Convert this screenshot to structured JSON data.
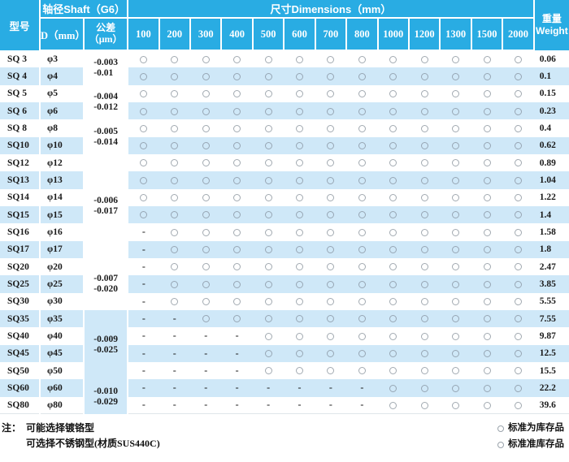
{
  "colors": {
    "header_bg": "#29ace3",
    "stripe_bg": "#cfe8f8",
    "header_text": "#ffffff"
  },
  "header": {
    "model_label": "型号",
    "shaft_label": "轴径Shaft（G6）",
    "d_label": "D（mm）",
    "tolerance_label_line1": "公差",
    "tolerance_label_line2": "（μm）",
    "dimensions_label": "尺寸Dimensions（mm）",
    "dim_columns": [
      "100",
      "200",
      "300",
      "400",
      "500",
      "600",
      "700",
      "800",
      "1000",
      "1200",
      "1300",
      "1500",
      "2000"
    ],
    "weight_label_cn": "重量",
    "weight_label_en": "Weight"
  },
  "tolerance_groups": [
    {
      "rows": 2,
      "lines": [
        "-0.003",
        "-0.01"
      ]
    },
    {
      "rows": 2,
      "lines": [
        "-0.004",
        "-0.012"
      ]
    },
    {
      "rows": 2,
      "lines": [
        "-0.005",
        "-0.014"
      ]
    },
    {
      "rows": 6,
      "lines": [
        "-0.006",
        "-0.017"
      ]
    },
    {
      "rows": 3,
      "lines": [
        "-0.007",
        "-0.020"
      ]
    },
    {
      "rows": 4,
      "lines": [
        "-0.009",
        "-0.025"
      ]
    },
    {
      "rows": 2,
      "lines": [
        "-0.010",
        "-0.029"
      ]
    }
  ],
  "rows": [
    {
      "model": "SQ 3",
      "d": "φ3",
      "cells": [
        "o",
        "o",
        "o",
        "o",
        "o",
        "o",
        "o",
        "o",
        "o",
        "o",
        "o",
        "o",
        "o"
      ],
      "weight": "0.06"
    },
    {
      "model": "SQ 4",
      "d": "φ4",
      "cells": [
        "o",
        "o",
        "o",
        "o",
        "o",
        "o",
        "o",
        "o",
        "o",
        "o",
        "o",
        "o",
        "o"
      ],
      "weight": "0.1"
    },
    {
      "model": "SQ 5",
      "d": "φ5",
      "cells": [
        "o",
        "o",
        "o",
        "o",
        "o",
        "o",
        "o",
        "o",
        "o",
        "o",
        "o",
        "o",
        "o"
      ],
      "weight": "0.15"
    },
    {
      "model": "SQ 6",
      "d": "φ6",
      "cells": [
        "o",
        "o",
        "o",
        "o",
        "o",
        "o",
        "o",
        "o",
        "o",
        "o",
        "o",
        "o",
        "o"
      ],
      "weight": "0.23"
    },
    {
      "model": "SQ 8",
      "d": "φ8",
      "cells": [
        "o",
        "o",
        "o",
        "o",
        "o",
        "o",
        "o",
        "o",
        "o",
        "o",
        "o",
        "o",
        "o"
      ],
      "weight": "0.4"
    },
    {
      "model": "SQ10",
      "d": "φ10",
      "cells": [
        "o",
        "o",
        "o",
        "o",
        "o",
        "o",
        "o",
        "o",
        "o",
        "o",
        "o",
        "o",
        "o"
      ],
      "weight": "0.62"
    },
    {
      "model": "SQ12",
      "d": "φ12",
      "cells": [
        "o",
        "o",
        "o",
        "o",
        "o",
        "o",
        "o",
        "o",
        "o",
        "o",
        "o",
        "o",
        "o"
      ],
      "weight": "0.89"
    },
    {
      "model": "SQ13",
      "d": "φ13",
      "cells": [
        "o",
        "o",
        "o",
        "o",
        "o",
        "o",
        "o",
        "o",
        "o",
        "o",
        "o",
        "o",
        "o"
      ],
      "weight": "1.04"
    },
    {
      "model": "SQ14",
      "d": "φ14",
      "cells": [
        "o",
        "o",
        "o",
        "o",
        "o",
        "o",
        "o",
        "o",
        "o",
        "o",
        "o",
        "o",
        "o"
      ],
      "weight": "1.22"
    },
    {
      "model": "SQ15",
      "d": "φ15",
      "cells": [
        "o",
        "o",
        "o",
        "o",
        "o",
        "o",
        "o",
        "o",
        "o",
        "o",
        "o",
        "o",
        "o"
      ],
      "weight": "1.4"
    },
    {
      "model": "SQ16",
      "d": "φ16",
      "cells": [
        "-",
        "o",
        "o",
        "o",
        "o",
        "o",
        "o",
        "o",
        "o",
        "o",
        "o",
        "o",
        "o"
      ],
      "weight": "1.58"
    },
    {
      "model": "SQ17",
      "d": "φ17",
      "cells": [
        "-",
        "o",
        "o",
        "o",
        "o",
        "o",
        "o",
        "o",
        "o",
        "o",
        "o",
        "o",
        "o"
      ],
      "weight": "1.8"
    },
    {
      "model": "SQ20",
      "d": "φ20",
      "cells": [
        "-",
        "o",
        "o",
        "o",
        "o",
        "o",
        "o",
        "o",
        "o",
        "o",
        "o",
        "o",
        "o"
      ],
      "weight": "2.47"
    },
    {
      "model": "SQ25",
      "d": "φ25",
      "cells": [
        "-",
        "o",
        "o",
        "o",
        "o",
        "o",
        "o",
        "o",
        "o",
        "o",
        "o",
        "o",
        "o"
      ],
      "weight": "3.85"
    },
    {
      "model": "SQ30",
      "d": "φ30",
      "cells": [
        "-",
        "o",
        "o",
        "o",
        "o",
        "o",
        "o",
        "o",
        "o",
        "o",
        "o",
        "o",
        "o"
      ],
      "weight": "5.55"
    },
    {
      "model": "SQ35",
      "d": "φ35",
      "cells": [
        "-",
        "-",
        "o",
        "o",
        "o",
        "o",
        "o",
        "o",
        "o",
        "o",
        "o",
        "o",
        "o"
      ],
      "weight": "7.55"
    },
    {
      "model": "SQ40",
      "d": "φ40",
      "cells": [
        "-",
        "-",
        "-",
        "-",
        "o",
        "o",
        "o",
        "o",
        "o",
        "o",
        "o",
        "o",
        "o"
      ],
      "weight": "9.87"
    },
    {
      "model": "SQ45",
      "d": "φ45",
      "cells": [
        "-",
        "-",
        "-",
        "-",
        "o",
        "o",
        "o",
        "o",
        "o",
        "o",
        "o",
        "o",
        "o"
      ],
      "weight": "12.5"
    },
    {
      "model": "SQ50",
      "d": "φ50",
      "cells": [
        "-",
        "-",
        "-",
        "-",
        "o",
        "o",
        "o",
        "o",
        "o",
        "o",
        "o",
        "o",
        "o"
      ],
      "weight": "15.5"
    },
    {
      "model": "SQ60",
      "d": "φ60",
      "cells": [
        "-",
        "-",
        "-",
        "-",
        "-",
        "-",
        "-",
        "-",
        "o",
        "o",
        "o",
        "o",
        "o"
      ],
      "weight": "22.2"
    },
    {
      "model": "SQ80",
      "d": "φ80",
      "cells": [
        "-",
        "-",
        "-",
        "-",
        "-",
        "-",
        "-",
        "-",
        "o",
        "o",
        "o",
        "o",
        "o"
      ],
      "weight": "39.6"
    }
  ],
  "footer": {
    "note_prefix": "注：",
    "note_line1": "可能选择镀铬型",
    "note_line2": "可选择不锈钢型(材质SUS440C)",
    "legend_1": "标准为库存品",
    "legend_2": "标准准库存品"
  }
}
